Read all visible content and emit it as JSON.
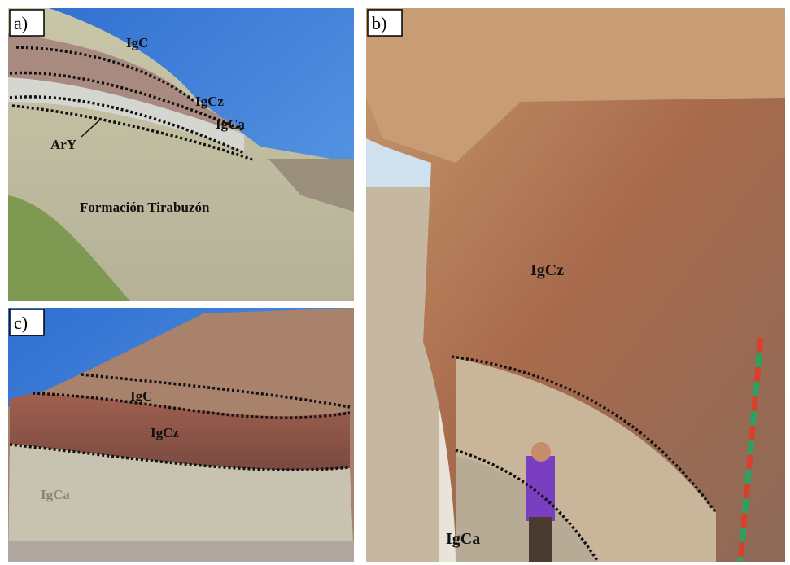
{
  "panels": [
    {
      "label": "a)",
      "annotations": [
        "IgC",
        "IgCz",
        "IgCa",
        "ArY",
        "Formación Tirabuzón"
      ]
    },
    {
      "label": "b)",
      "annotations": [
        "IgCz",
        "IgCa"
      ]
    },
    {
      "label": "c)",
      "annotations": [
        "IgC",
        "IgCz",
        "IgCa"
      ]
    }
  ]
}
